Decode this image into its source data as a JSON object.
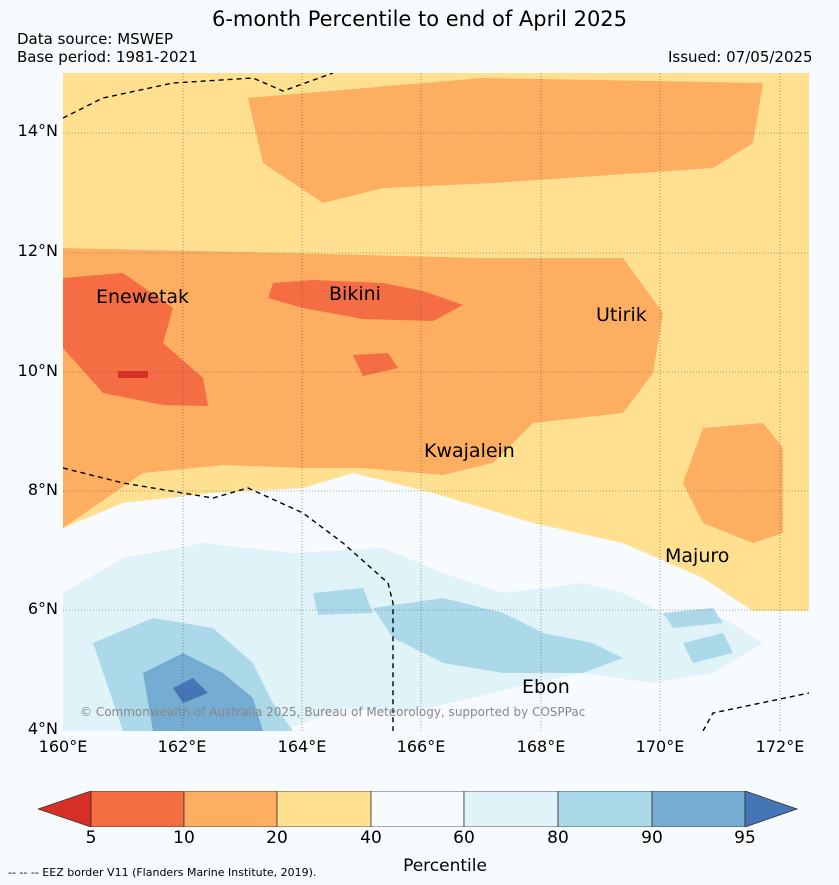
{
  "title": "6-month Percentile to end of April 2025",
  "data_source": "Data source: MSWEP",
  "base_period": "Base period: 1981-2021",
  "issued": "Issued: 07/05/2025",
  "y_ticks": [
    "14°N",
    "12°N",
    "10°N",
    "8°N",
    "6°N",
    "4°N"
  ],
  "x_ticks": [
    "160°E",
    "162°E",
    "164°E",
    "166°E",
    "168°E",
    "170°E",
    "172°E"
  ],
  "places": [
    "Enewetak",
    "Bikini",
    "Utirik",
    "Kwajalein",
    "Majuro",
    "Ebon"
  ],
  "copyright": "© Commonwealth of Australia 2025, Bureau of Meteorology, supported by COSPPac",
  "colorbar": {
    "labels": [
      "5",
      "10",
      "20",
      "40",
      "60",
      "80",
      "90",
      "95"
    ],
    "title": "Percentile",
    "colors": [
      "#d73027",
      "#f46d43",
      "#fdae61",
      "#fee090",
      "#f8fbfd",
      "#e0f3f8",
      "#abd9e9",
      "#74add1",
      "#4575b4"
    ]
  },
  "footnote": "-- -- -- EEZ border V11 (Flanders Marine Institute, 2019)."
}
